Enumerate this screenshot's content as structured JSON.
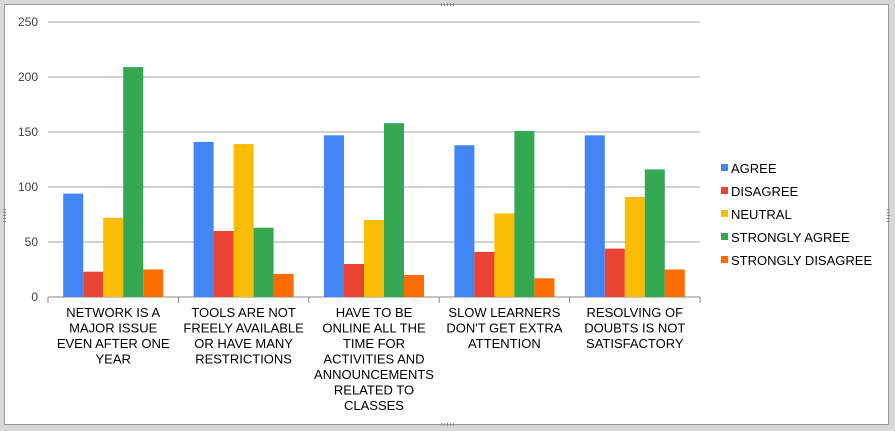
{
  "chart_data": {
    "type": "bar",
    "title": "",
    "xlabel": "",
    "ylabel": "",
    "ylim": [
      0,
      250
    ],
    "yticks": [
      0,
      50,
      100,
      150,
      200,
      250
    ],
    "grid": true,
    "legend_position": "right",
    "categories": [
      [
        "NETWORK IS A",
        "MAJOR ISSUE",
        "EVEN AFTER ONE",
        "YEAR"
      ],
      [
        "TOOLS ARE NOT",
        "FREELY AVAILABLE",
        "OR HAVE MANY",
        "RESTRICTIONS"
      ],
      [
        "HAVE TO BE",
        "ONLINE ALL THE",
        "TIME FOR",
        "ACTIVITIES AND",
        "ANNOUNCEMENTS",
        "RELATED TO",
        "CLASSES"
      ],
      [
        "SLOW LEARNERS",
        "DON'T GET EXTRA",
        "ATTENTION"
      ],
      [
        "RESOLVING OF",
        "DOUBTS IS NOT",
        "SATISFACTORY"
      ]
    ],
    "series": [
      {
        "name": "AGREE",
        "color": "#4285f4",
        "values": [
          94,
          141,
          147,
          138,
          147
        ]
      },
      {
        "name": "DISAGREE",
        "color": "#ea4335",
        "values": [
          23,
          60,
          30,
          41,
          44
        ]
      },
      {
        "name": "NEUTRAL",
        "color": "#fbbc04",
        "values": [
          72,
          139,
          70,
          76,
          91
        ]
      },
      {
        "name": "STRONGLY AGREE",
        "color": "#34a853",
        "values": [
          209,
          63,
          158,
          151,
          116
        ]
      },
      {
        "name": "STRONGLY DISAGREE",
        "color": "#ff6d01",
        "values": [
          25,
          21,
          20,
          17,
          25
        ]
      }
    ]
  }
}
